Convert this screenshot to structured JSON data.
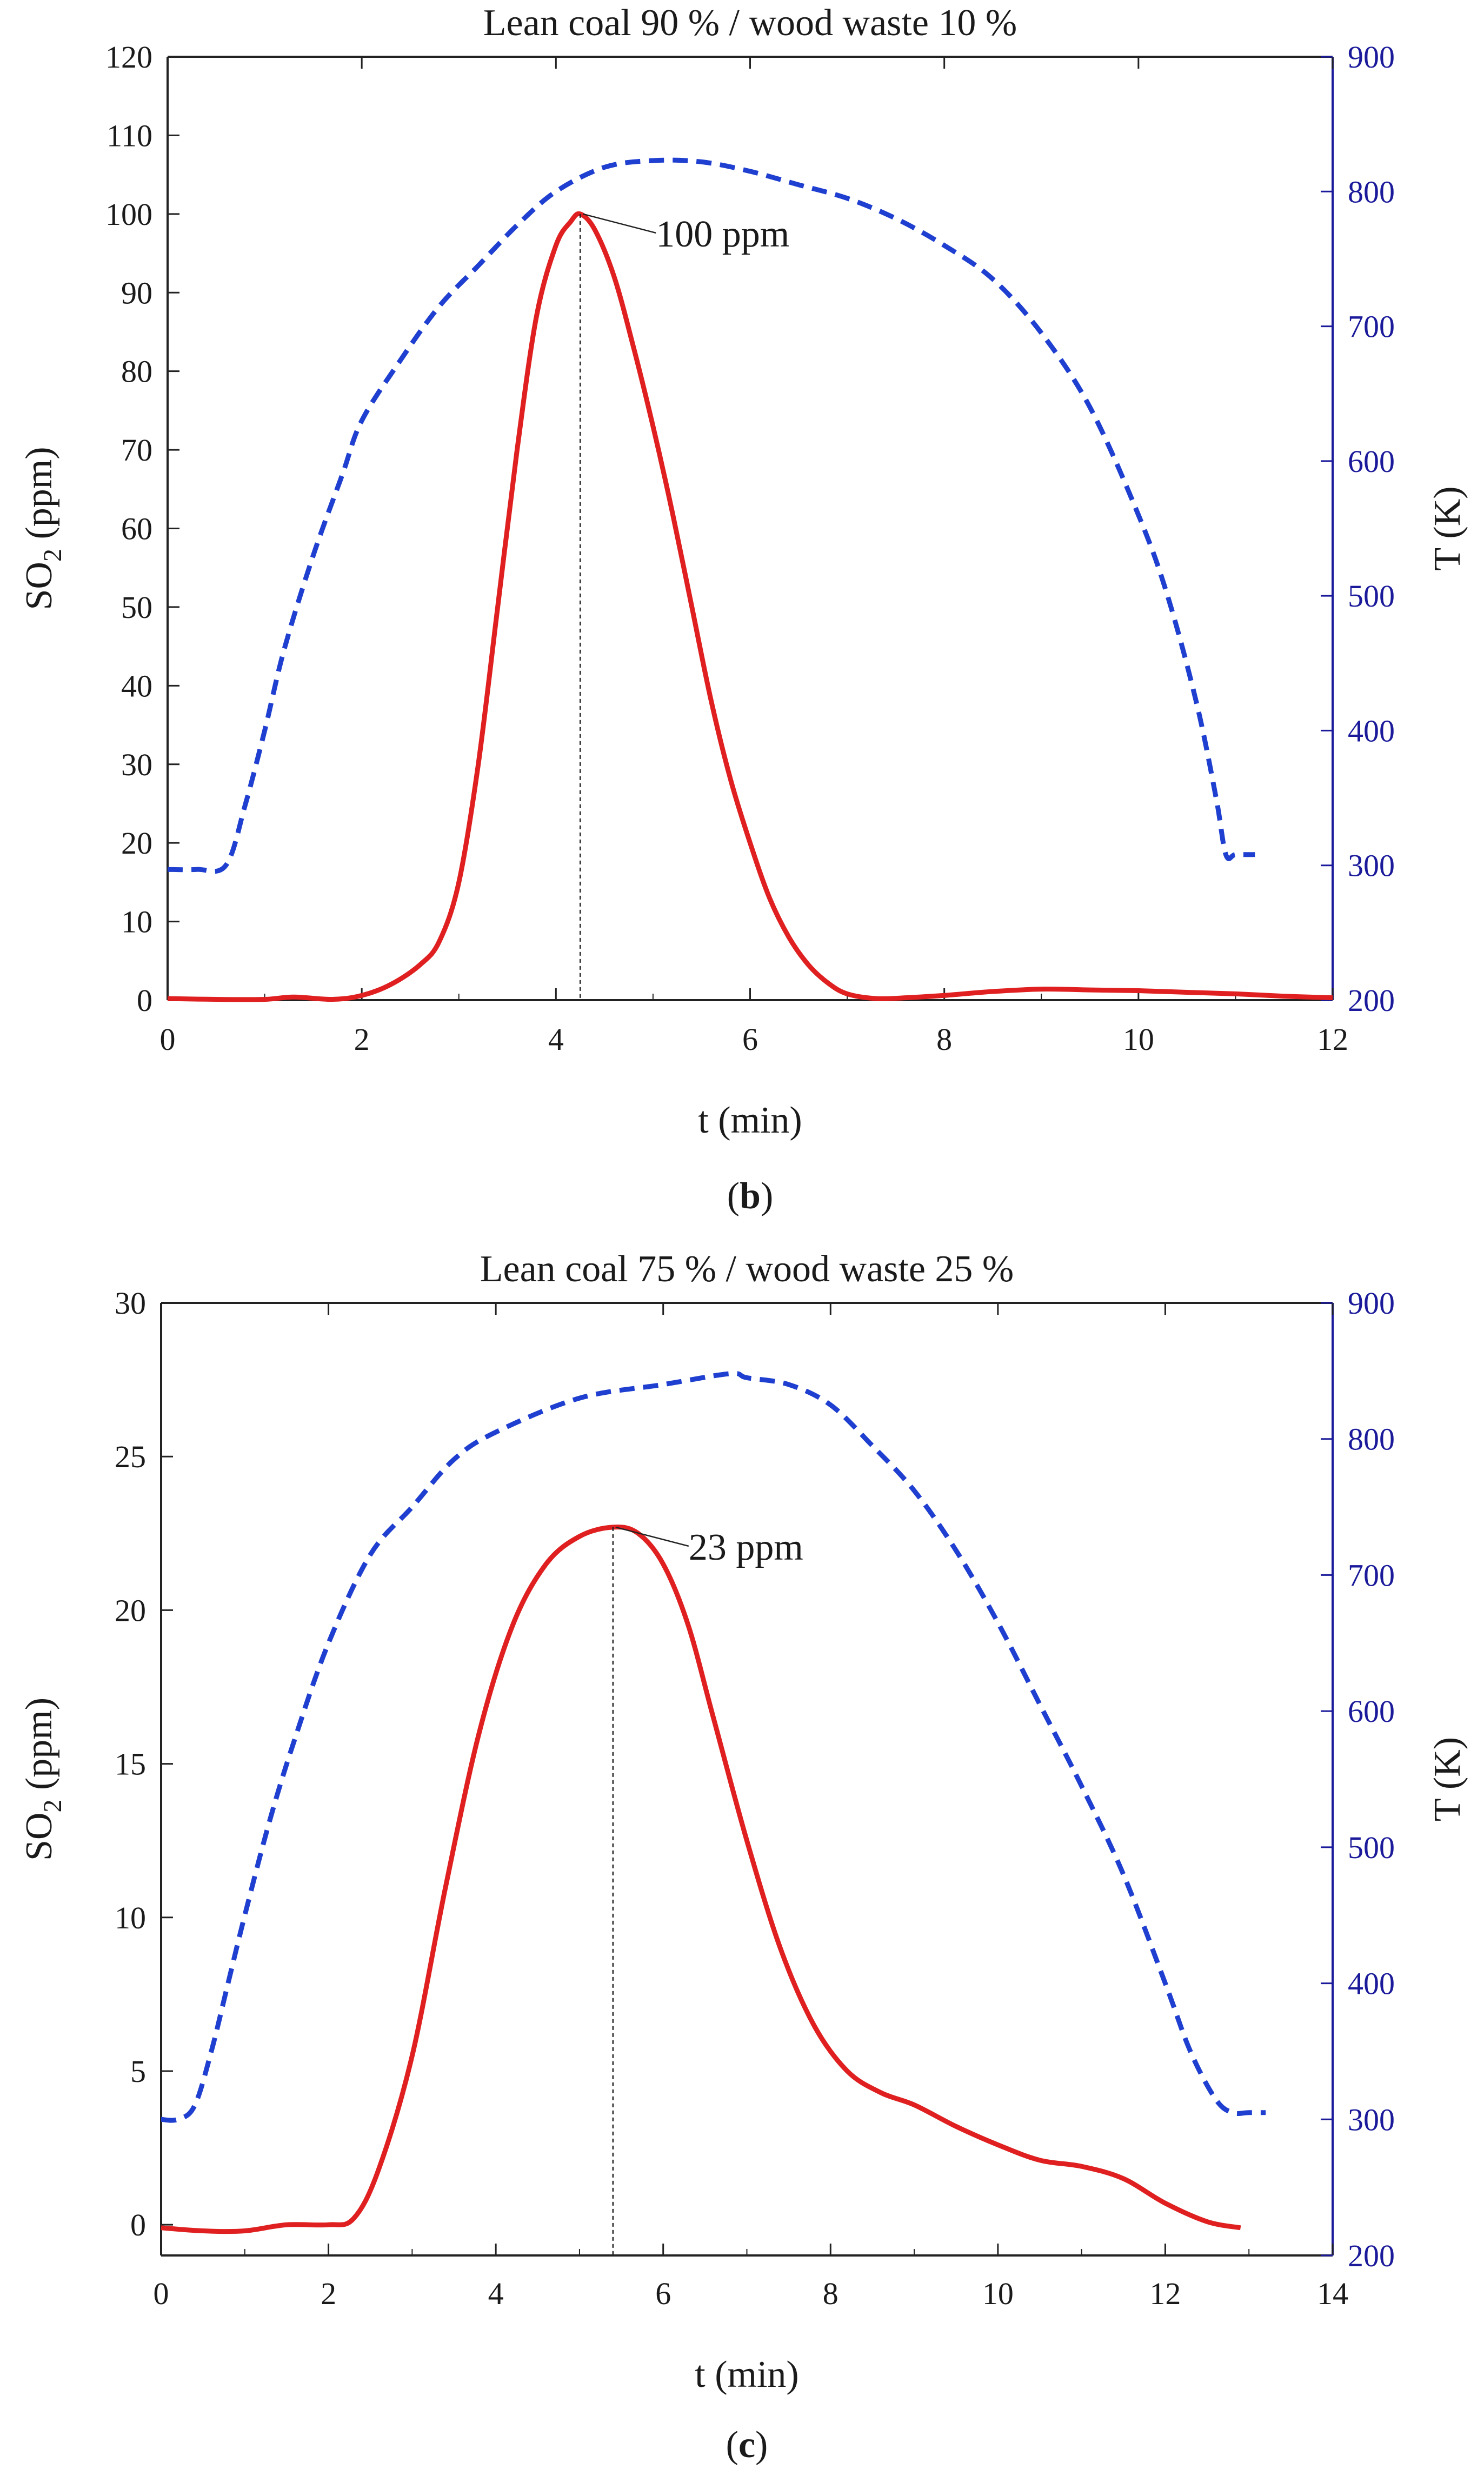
{
  "chart_data": [
    {
      "type": "line",
      "panel_label": "b",
      "title": "Lean coal 90 % / wood waste 10 %",
      "xlabel": "t (min)",
      "ylabel_main": "SO",
      "ylabel_sub": "2",
      "ylabel_unit": " (ppm)",
      "y2label": "T (K)",
      "xlim": [
        0,
        12
      ],
      "ylim": [
        0,
        120
      ],
      "y2lim": [
        200,
        900
      ],
      "x_ticks": [
        "0",
        "2",
        "4",
        "6",
        "8",
        "10",
        "12"
      ],
      "y_ticks": [
        "0",
        "10",
        "20",
        "30",
        "40",
        "50",
        "60",
        "70",
        "80",
        "90",
        "100",
        "110",
        "120"
      ],
      "y2_ticks": [
        "200",
        "300",
        "400",
        "500",
        "600",
        "700",
        "800",
        "900"
      ],
      "colors": {
        "so2": "#e02020",
        "temperature": "#1f3fd0",
        "right_axis": "#1a1a9a"
      },
      "series": [
        {
          "name": "SO2 (ppm)",
          "axis": "left",
          "style": "solid",
          "x": [
            0,
            0.5,
            1.0,
            1.3,
            1.7,
            2.0,
            2.3,
            2.6,
            2.8,
            3.0,
            3.2,
            3.4,
            3.6,
            3.8,
            4.0,
            4.15,
            4.25,
            4.4,
            4.6,
            4.8,
            5.0,
            5.2,
            5.4,
            5.6,
            5.8,
            6.0,
            6.2,
            6.4,
            6.6,
            6.8,
            7.0,
            7.3,
            7.6,
            8.0,
            8.5,
            9.0,
            9.5,
            10.0,
            10.5,
            11.0,
            11.5,
            12.0
          ],
          "y": [
            0.2,
            0.1,
            0.1,
            0.4,
            0.1,
            0.6,
            2.0,
            4.5,
            7.5,
            15,
            30,
            50,
            70,
            87,
            96,
            99,
            100,
            98,
            92,
            83,
            73,
            62,
            50,
            38,
            28,
            20,
            13,
            8,
            4.5,
            2.2,
            0.8,
            0.2,
            0.3,
            0.6,
            1.1,
            1.4,
            1.3,
            1.2,
            1.0,
            0.8,
            0.5,
            0.3
          ]
        },
        {
          "name": "T (K)",
          "axis": "right",
          "style": "dashed",
          "x": [
            0,
            0.3,
            0.6,
            0.8,
            1.0,
            1.2,
            1.5,
            1.8,
            2.0,
            2.4,
            2.8,
            3.2,
            3.6,
            4.0,
            4.5,
            5.0,
            5.5,
            6.0,
            6.5,
            7.0,
            7.5,
            8.0,
            8.5,
            9.0,
            9.5,
            10.0,
            10.3,
            10.6,
            10.8,
            10.9,
            11.0,
            11.2
          ],
          "y": [
            297,
            297,
            300,
            345,
            400,
            460,
            530,
            590,
            630,
            675,
            715,
            745,
            775,
            800,
            818,
            823,
            822,
            815,
            805,
            795,
            780,
            760,
            735,
            695,
            640,
            560,
            500,
            420,
            350,
            308,
            308,
            308
          ]
        }
      ],
      "annotations": [
        {
          "text": "100 ppm",
          "x": 4.25,
          "y": 100
        }
      ]
    },
    {
      "type": "line",
      "panel_label": "c",
      "title": "Lean coal 75 % / wood waste 25 %",
      "xlabel": "t (min)",
      "ylabel_main": "SO",
      "ylabel_sub": "2",
      "ylabel_unit": " (ppm)",
      "y2label": "T (K)",
      "xlim": [
        0,
        14
      ],
      "ylim": [
        -1,
        30
      ],
      "y2lim": [
        200,
        900
      ],
      "x_ticks": [
        "0",
        "2",
        "4",
        "6",
        "8",
        "10",
        "12",
        "14"
      ],
      "y_ticks": [
        "0",
        "5",
        "10",
        "15",
        "20",
        "25",
        "30"
      ],
      "y2_ticks": [
        "200",
        "300",
        "400",
        "500",
        "600",
        "700",
        "800",
        "900"
      ],
      "colors": {
        "so2": "#e02020",
        "temperature": "#1f3fd0",
        "right_axis": "#1a1a9a"
      },
      "series": [
        {
          "name": "SO2 (ppm)",
          "axis": "left",
          "style": "solid",
          "x": [
            0,
            0.5,
            1.0,
            1.5,
            2.0,
            2.3,
            2.6,
            3.0,
            3.4,
            3.8,
            4.2,
            4.6,
            5.0,
            5.4,
            5.7,
            6.0,
            6.3,
            6.6,
            7.0,
            7.4,
            7.8,
            8.2,
            8.6,
            9.0,
            9.5,
            10.0,
            10.5,
            11.0,
            11.5,
            12.0,
            12.5,
            12.9
          ],
          "y": [
            -0.1,
            -0.2,
            -0.2,
            0.0,
            0.0,
            0.2,
            1.8,
            5.5,
            11,
            16,
            19.5,
            21.5,
            22.4,
            22.7,
            22.5,
            21.5,
            19.5,
            16.5,
            12.5,
            9,
            6.5,
            5.0,
            4.3,
            3.9,
            3.2,
            2.6,
            2.1,
            1.9,
            1.5,
            0.7,
            0.1,
            -0.1
          ]
        },
        {
          "name": "T (K)",
          "axis": "right",
          "style": "dashed",
          "x": [
            0,
            0.2,
            0.4,
            0.6,
            0.8,
            1.0,
            1.3,
            1.6,
            2.0,
            2.5,
            3.0,
            3.5,
            4.0,
            5.0,
            6.0,
            6.8,
            7.0,
            7.5,
            8.0,
            8.5,
            9.0,
            9.5,
            10.0,
            10.5,
            11.0,
            11.5,
            12.0,
            12.3,
            12.6,
            12.8,
            13.0,
            13.2
          ],
          "y": [
            300,
            300,
            310,
            350,
            400,
            450,
            520,
            580,
            650,
            715,
            750,
            785,
            805,
            830,
            840,
            848,
            845,
            840,
            825,
            795,
            762,
            718,
            665,
            605,
            545,
            480,
            400,
            350,
            315,
            305,
            305,
            305
          ]
        }
      ],
      "annotations": [
        {
          "text": "23 ppm",
          "x": 5.4,
          "y": 22.7
        }
      ]
    }
  ]
}
